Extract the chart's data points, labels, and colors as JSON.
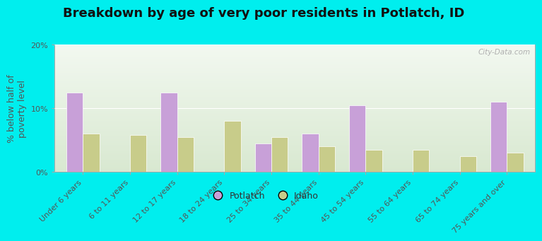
{
  "title": "Breakdown by age of very poor residents in Potlatch, ID",
  "ylabel": "% below half of\npoverty level",
  "categories": [
    "Under 6 years",
    "6 to 11 years",
    "12 to 17 years",
    "18 to 24 years",
    "25 to 34 years",
    "35 to 44 years",
    "45 to 54 years",
    "55 to 64 years",
    "65 to 74 years",
    "75 years and over"
  ],
  "potlatch_values": [
    12.5,
    0,
    12.5,
    0,
    4.5,
    6.0,
    10.5,
    0,
    0,
    11.0
  ],
  "idaho_values": [
    6.0,
    5.8,
    5.5,
    8.0,
    5.5,
    4.0,
    3.5,
    3.5,
    2.5,
    3.0
  ],
  "ylim": [
    0,
    20
  ],
  "yticks": [
    0,
    10,
    20
  ],
  "yticklabels": [
    "0%",
    "10%",
    "20%"
  ],
  "potlatch_color": "#c8a0d8",
  "idaho_color": "#c8cc8a",
  "bar_width": 0.35,
  "background_color": "#00eeee",
  "plot_bg_top": "#f2f8f0",
  "plot_bg_bottom": "#d8e8d0",
  "title_fontsize": 13,
  "axis_label_fontsize": 9,
  "tick_fontsize": 8,
  "legend_labels": [
    "Potlatch",
    "Idaho"
  ],
  "watermark": "City-Data.com",
  "label_color": "#555555",
  "grid_color": "#ffffff"
}
